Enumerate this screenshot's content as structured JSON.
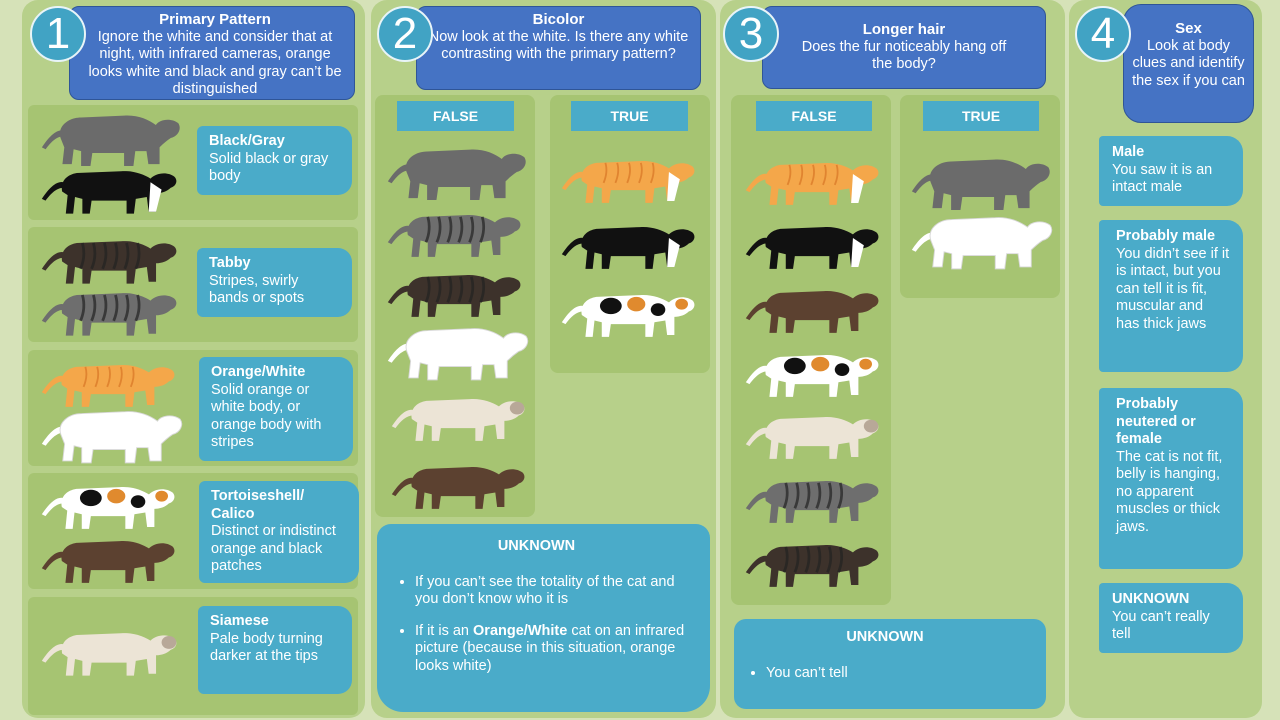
{
  "step1": {
    "number": "1",
    "title": "Primary Pattern",
    "text": "Ignore the white and consider that at night, with infrared cameras, orange looks white and black and gray can’t be distinguished",
    "categories": [
      {
        "name": "Black/Gray",
        "desc": "Solid black or gray body"
      },
      {
        "name": "Tabby",
        "desc": "Stripes, swirly bands or spots"
      },
      {
        "name": "Orange/White",
        "desc": "Solid orange or white body, or orange body with stripes"
      },
      {
        "name": "Tortoiseshell/ Calico",
        "desc": "Distinct or indistinct orange and black patches"
      },
      {
        "name": "Siamese",
        "desc": "Pale body turning darker at the tips"
      }
    ]
  },
  "step2": {
    "number": "2",
    "title": "Bicolor",
    "text": "Now look at the white. Is there any white contrasting with the primary pattern?",
    "false_label": "FALSE",
    "true_label": "TRUE",
    "unknown": {
      "title": "UNKNOWN",
      "bullet1": "If you can’t see the totality of the cat and you don’t know who it is",
      "bullet2_pre": "If it is an ",
      "bullet2_bold": "Orange/White",
      "bullet2_post": " cat on an infrared picture (because in this situation, orange looks white)"
    }
  },
  "step3": {
    "number": "3",
    "title": "Longer hair",
    "text": "Does the fur noticeably hang off the body?",
    "false_label": "FALSE",
    "true_label": "TRUE",
    "unknown": {
      "title": "UNKNOWN",
      "bullet1": "You can’t tell"
    }
  },
  "step4": {
    "number": "4",
    "title": "Sex",
    "text": "Look at body clues and identify the sex if you can",
    "cards": [
      {
        "title": "Male",
        "desc": "You saw it is an intact male"
      },
      {
        "title": "Probably male",
        "desc": "You didn’t see if it is intact, but you can tell it is fit, muscular and has thick jaws"
      },
      {
        "title": "Probably neutered or female",
        "desc": "The cat is not fit, belly is hanging, no apparent muscles or thick jaws."
      },
      {
        "title": "UNKNOWN",
        "desc": "You can’t really tell"
      }
    ]
  },
  "colors": {
    "background": "#d6e2b8",
    "column": "#b7d08a",
    "row": "#a6c472",
    "card": "#4aabc9",
    "header": "#4573c4",
    "circle": "#41a3c4"
  },
  "cat_coats": {
    "gray": "#6b6b6b",
    "black": "#111111",
    "orange": "#f4a74a",
    "white": "#ffffff",
    "brown": "#5c4130",
    "tabby_gray": "#6e6e6e",
    "tabby_brown": "#3d322b",
    "siamese": "#ece4d6",
    "calico": "#e08a2e"
  }
}
